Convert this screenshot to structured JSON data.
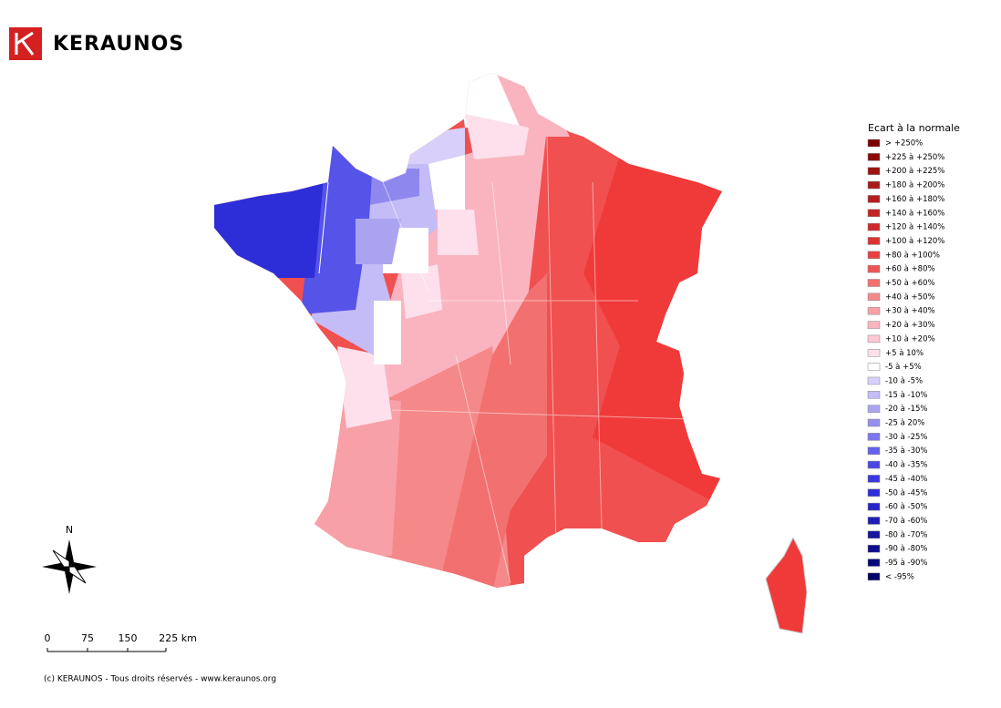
{
  "logo": {
    "text": "KERAUNOS"
  },
  "legend": {
    "title": "Ecart à la normale",
    "items": [
      {
        "label": "> +250%",
        "color": "#7a0000"
      },
      {
        "label": "+225 à +250%",
        "color": "#8b0a0a"
      },
      {
        "label": "+200 à +225%",
        "color": "#9c1414"
      },
      {
        "label": "+180 à +200%",
        "color": "#a81a1a"
      },
      {
        "label": "+160 à +180%",
        "color": "#b51e1e"
      },
      {
        "label": "+140 à +160%",
        "color": "#c22424"
      },
      {
        "label": "+120 à +140%",
        "color": "#cf2a2a"
      },
      {
        "label": "+100 à +120%",
        "color": "#dc3232"
      },
      {
        "label": "+80 à +100%",
        "color": "#e84040"
      },
      {
        "label": "+60 à +80%",
        "color": "#ee5555"
      },
      {
        "label": "+50 à +60%",
        "color": "#f27070"
      },
      {
        "label": "+40 à +50%",
        "color": "#f58888"
      },
      {
        "label": "+30 à +40%",
        "color": "#f8a0a8"
      },
      {
        "label": "+20 à +30%",
        "color": "#fab4c0"
      },
      {
        "label": "+10 à +20%",
        "color": "#fbc8d4"
      },
      {
        "label": "+5 à 10%",
        "color": "#fde0ec"
      },
      {
        "label": "-5 à +5%",
        "color": "#ffffff"
      },
      {
        "label": "-10 à -5%",
        "color": "#d8d0fa"
      },
      {
        "label": "-15 à -10%",
        "color": "#c4bcf6"
      },
      {
        "label": "-20 à -15%",
        "color": "#aaa4f0"
      },
      {
        "label": "-25 à 20%",
        "color": "#9590ee"
      },
      {
        "label": "-30 à -25%",
        "color": "#7d78ec"
      },
      {
        "label": "-35 à -30%",
        "color": "#6560ea"
      },
      {
        "label": "-40 à -35%",
        "color": "#4b48e6"
      },
      {
        "label": "-45 à -40%",
        "color": "#3a38e0"
      },
      {
        "label": "-50 à -45%",
        "color": "#2e2ed8"
      },
      {
        "label": "-60 à -50%",
        "color": "#2626c8"
      },
      {
        "label": "-70 à -60%",
        "color": "#1e1eb4"
      },
      {
        "label": "-80 à -70%",
        "color": "#16169e"
      },
      {
        "label": "-90 à -80%",
        "color": "#0e0e8a"
      },
      {
        "label": "-95 à -90%",
        "color": "#080878"
      },
      {
        "label": "< -95%",
        "color": "#000066"
      }
    ]
  },
  "compass": {
    "label": "N"
  },
  "scale": {
    "labels": [
      "0",
      "75",
      "150",
      "225 km"
    ]
  },
  "footer": "(c) KERAUNOS - Tous droits réservés - www.keraunos.org"
}
